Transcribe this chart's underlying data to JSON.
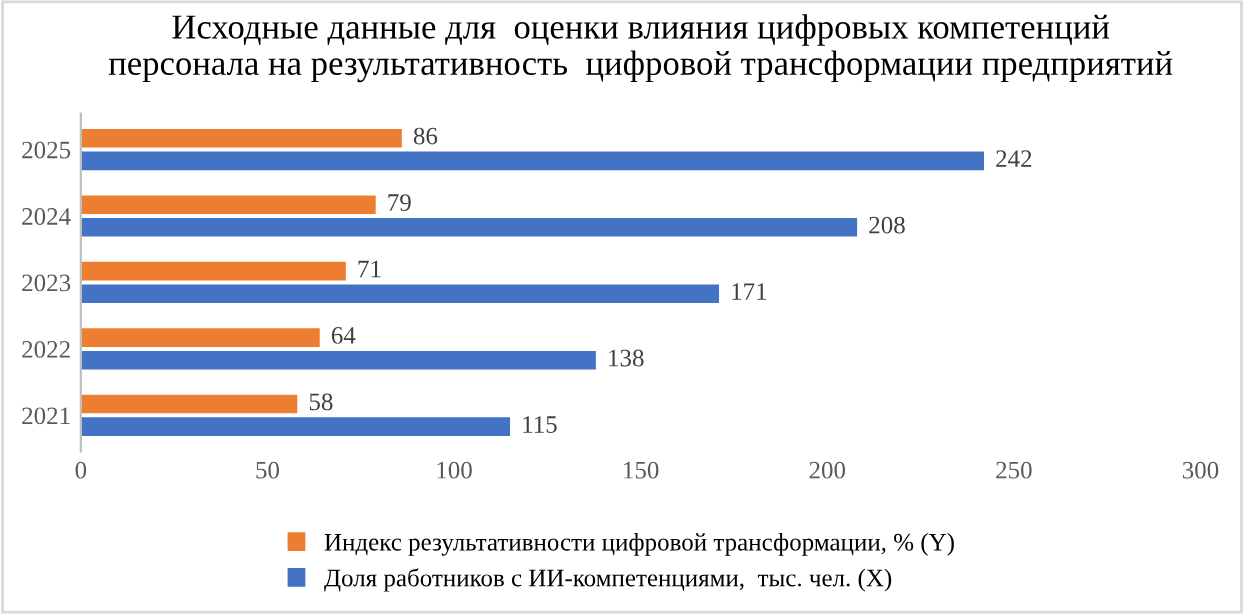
{
  "chart_data": {
    "type": "bar",
    "orientation": "horizontal",
    "title": "Исходные данные для  оценки влияния цифровых компетенций\nперсонала на результативность  цифровой трансформации предприятий",
    "categories": [
      "2025",
      "2024",
      "2023",
      "2022",
      "2021"
    ],
    "series": [
      {
        "name": "Индекс результативности цифровой трансформации, % (Y)",
        "color": "#ed7d31",
        "values": [
          86,
          79,
          71,
          64,
          58
        ]
      },
      {
        "name": "Доля работников с ИИ-компетенциями,  тыс. чел. (X)",
        "color": "#4472c4",
        "values": [
          242,
          208,
          171,
          138,
          115
        ]
      }
    ],
    "xlim": [
      0,
      300
    ],
    "xticks": [
      0,
      50,
      100,
      150,
      200,
      250,
      300
    ],
    "grid": false,
    "legend": "bottom",
    "data_labels": true
  }
}
